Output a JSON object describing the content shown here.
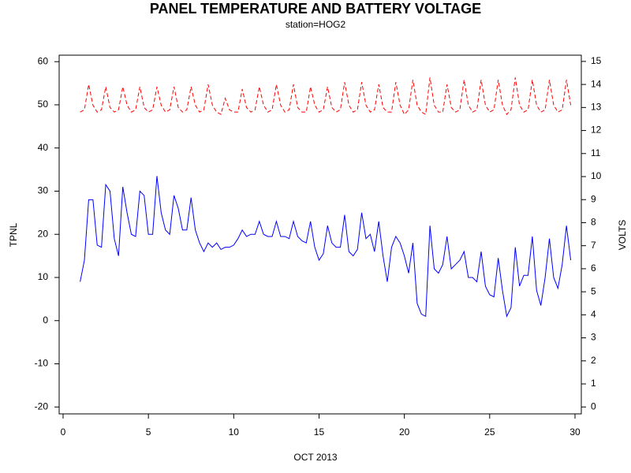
{
  "chart_data": {
    "type": "line",
    "title": "PANEL TEMPERATURE AND BATTERY VOLTAGE",
    "subtitle": "station=HOG2",
    "xlabel": "OCT 2013",
    "ylabel": "TPNL",
    "y2label": "VOLTS",
    "xlim": [
      -0.23,
      30.37
    ],
    "xticks": [
      0,
      5,
      10,
      15,
      20,
      25,
      30
    ],
    "ylim": [
      -21.6,
      61.5
    ],
    "yticks": [
      -20,
      -10,
      0,
      10,
      20,
      30,
      40,
      50,
      60
    ],
    "y2lim": [
      -0.3,
      15.27
    ],
    "y2ticks": [
      0,
      1,
      2,
      3,
      4,
      5,
      6,
      7,
      8,
      9,
      10,
      11,
      12,
      13,
      14,
      15
    ],
    "x": [
      1,
      1.25,
      1.5,
      1.75,
      2,
      2.25,
      2.5,
      2.75,
      3,
      3.25,
      3.5,
      3.75,
      4,
      4.25,
      4.5,
      4.75,
      5,
      5.25,
      5.5,
      5.75,
      6,
      6.25,
      6.5,
      6.75,
      7,
      7.25,
      7.5,
      7.75,
      8,
      8.25,
      8.5,
      8.75,
      9,
      9.25,
      9.5,
      9.75,
      10,
      10.25,
      10.5,
      10.75,
      11,
      11.25,
      11.5,
      11.75,
      12,
      12.25,
      12.5,
      12.75,
      13,
      13.25,
      13.5,
      13.75,
      14,
      14.25,
      14.5,
      14.75,
      15,
      15.25,
      15.5,
      15.75,
      16,
      16.25,
      16.5,
      16.75,
      17,
      17.25,
      17.5,
      17.75,
      18,
      18.25,
      18.5,
      18.75,
      19,
      19.25,
      19.5,
      19.75,
      20,
      20.25,
      20.5,
      20.75,
      21,
      21.25,
      21.5,
      21.75,
      22,
      22.25,
      22.5,
      22.75,
      23,
      23.25,
      23.5,
      23.75,
      24,
      24.25,
      24.5,
      24.75,
      25,
      25.25,
      25.5,
      25.75,
      26,
      26.25,
      26.5,
      26.75,
      27,
      27.25,
      27.5,
      27.75,
      28,
      28.25,
      28.5,
      28.75,
      29,
      29.25,
      29.5,
      29.75
    ],
    "series": [
      {
        "name": "TPNL",
        "color": "#0000ff",
        "line_style": "solid",
        "values": [
          9,
          14,
          28,
          28,
          17.5,
          17,
          31.5,
          30,
          19,
          15,
          31,
          25,
          20,
          19.5,
          30,
          29,
          20,
          20,
          33.5,
          25,
          21,
          20,
          29,
          26,
          21,
          21,
          28.5,
          21,
          18,
          16,
          18,
          17,
          18,
          16.5,
          17,
          17,
          17.5,
          19,
          21,
          19.5,
          20,
          20,
          23,
          20,
          19.5,
          19.5,
          23,
          19.5,
          19.5,
          19,
          23,
          19.5,
          18.5,
          18,
          23,
          17,
          14,
          15.5,
          22,
          18,
          17,
          17,
          24.5,
          16,
          15,
          16.5,
          25,
          19,
          20,
          16,
          23,
          15,
          9,
          17,
          19.5,
          18,
          15,
          11,
          18,
          4,
          1.5,
          1,
          22,
          12,
          11,
          13,
          19.5,
          12,
          13,
          14,
          16,
          10,
          10,
          9,
          16,
          8,
          6,
          5.5,
          14.5,
          7,
          1,
          3,
          17,
          8,
          10.5,
          10.5,
          19.5,
          7,
          3.5,
          10,
          19,
          10,
          7.5,
          13,
          22,
          14
        ]
      },
      {
        "name": "VOLTS",
        "color": "#ff0000",
        "line_style": "dashed",
        "axis": "y2",
        "values": [
          12.8,
          12.9,
          14.0,
          13.1,
          12.8,
          12.9,
          13.9,
          13.0,
          12.8,
          12.9,
          13.9,
          13.1,
          12.8,
          12.9,
          13.9,
          13.0,
          12.8,
          12.9,
          13.9,
          13.1,
          12.8,
          12.9,
          13.9,
          13.0,
          12.8,
          12.9,
          13.9,
          13.1,
          12.8,
          12.9,
          14.0,
          13.1,
          12.8,
          12.7,
          13.4,
          12.9,
          12.8,
          12.8,
          13.8,
          13.0,
          12.8,
          12.9,
          13.9,
          13.1,
          12.8,
          12.9,
          14.0,
          13.1,
          12.8,
          12.9,
          14.0,
          13.0,
          12.8,
          12.8,
          13.9,
          13.1,
          12.8,
          12.9,
          13.9,
          13.0,
          12.8,
          12.9,
          14.1,
          13.1,
          12.8,
          12.9,
          14.1,
          13.1,
          12.8,
          12.9,
          14.0,
          13.0,
          12.8,
          12.8,
          14.1,
          13.1,
          12.7,
          12.9,
          14.2,
          13.1,
          12.8,
          12.7,
          14.3,
          13.1,
          12.8,
          12.8,
          14.0,
          13.0,
          12.8,
          12.9,
          14.2,
          13.1,
          12.8,
          12.9,
          14.2,
          13.1,
          12.8,
          12.9,
          14.2,
          13.1,
          12.7,
          12.9,
          14.3,
          13.1,
          12.8,
          12.9,
          14.2,
          13.1,
          12.8,
          12.9,
          14.2,
          13.1,
          12.8,
          12.9,
          14.2,
          13.1
        ]
      }
    ]
  }
}
